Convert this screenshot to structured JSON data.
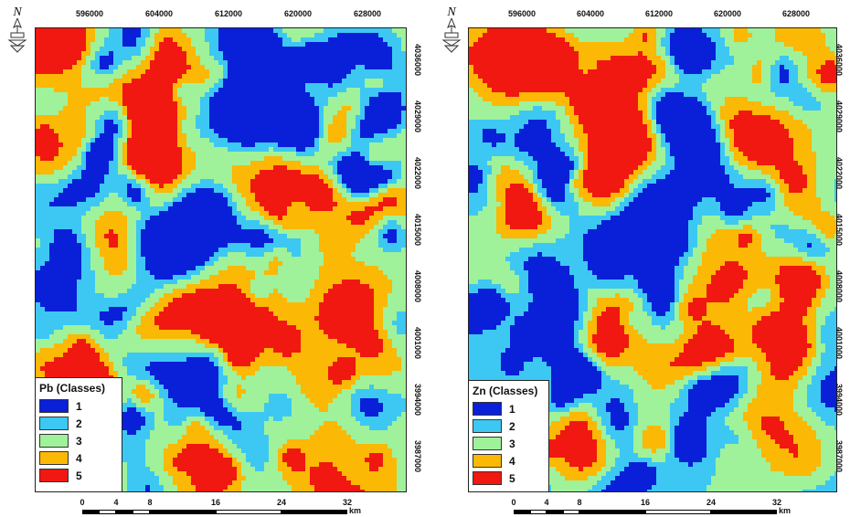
{
  "maps": [
    {
      "legend": {
        "title": "Pb (Classes)",
        "classes": [
          {
            "label": "1",
            "color": "#0a1fd8"
          },
          {
            "label": "2",
            "color": "#3cc8f2"
          },
          {
            "label": "3",
            "color": "#9ff29a"
          },
          {
            "label": "4",
            "color": "#fbb804"
          },
          {
            "label": "5",
            "color": "#f01810"
          }
        ]
      },
      "x_ticks": [
        "596000",
        "604000",
        "612000",
        "620000",
        "628000"
      ],
      "y_ticks": [
        "4036000",
        "4029000",
        "4022000",
        "4015000",
        "4008000",
        "4001000",
        "3994000",
        "3987000"
      ],
      "north_label": "N",
      "scale": {
        "labels": [
          "0",
          "4",
          "8",
          "16",
          "24",
          "32"
        ],
        "unit": "km"
      }
    },
    {
      "legend": {
        "title": "Zn (Classes)",
        "classes": [
          {
            "label": "1",
            "color": "#0a1fd8"
          },
          {
            "label": "2",
            "color": "#3cc8f2"
          },
          {
            "label": "3",
            "color": "#9ff29a"
          },
          {
            "label": "4",
            "color": "#fbb804"
          },
          {
            "label": "5",
            "color": "#f01810"
          }
        ]
      },
      "x_ticks": [
        "596000",
        "604000",
        "612000",
        "620000",
        "628000"
      ],
      "y_ticks": [
        "4036000",
        "4029000",
        "4022000",
        "4015000",
        "4008000",
        "4001000",
        "3994000",
        "3987000"
      ],
      "north_label": "N",
      "scale": {
        "labels": [
          "0",
          "4",
          "8",
          "16",
          "24",
          "32"
        ],
        "unit": "km"
      }
    }
  ]
}
